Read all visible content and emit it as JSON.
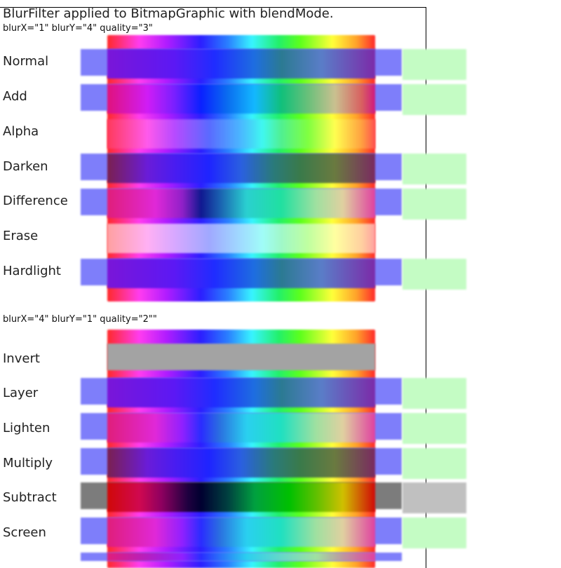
{
  "header": {
    "title": "BlurFilter applied to BitmapGraphic with blendMode.",
    "subtitle1": "blurX=\"1\" blurY=\"4\" quality=\"3\"",
    "subtitle2": "blurX=\"4\" blurY=\"1\" quality=\"2\"\""
  },
  "colors": {
    "blue_rect": "#7e7efa",
    "green_rect": "#c4fcc4",
    "gray_rect": "#7c7c7c",
    "light_gray_rect": "#c0c0c0",
    "invert_gray": "#a3a3a3"
  },
  "rows": [
    {
      "label": "Normal"
    },
    {
      "label": "Add"
    },
    {
      "label": "Alpha"
    },
    {
      "label": "Darken"
    },
    {
      "label": "Difference"
    },
    {
      "label": "Erase"
    },
    {
      "label": "Hardlight"
    },
    {
      "label": "Invert"
    },
    {
      "label": "Layer"
    },
    {
      "label": "Lighten"
    },
    {
      "label": "Multiply"
    },
    {
      "label": "Subtract"
    },
    {
      "label": "Screen"
    }
  ]
}
